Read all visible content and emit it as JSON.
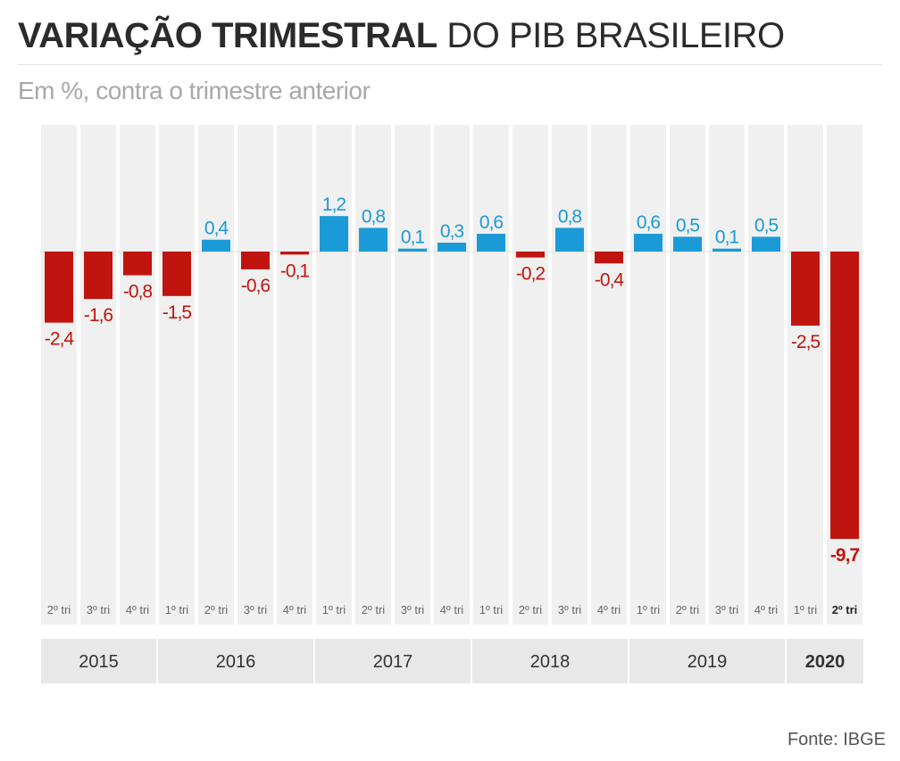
{
  "header": {
    "title_bold": "VARIAÇÃO TRIMESTRAL",
    "title_light": "DO PIB BRASILEIRO",
    "subtitle": "Em %, contra o trimestre anterior"
  },
  "source": "Fonte: IBGE",
  "colors": {
    "positive": "#1a9ad6",
    "negative": "#c0150e",
    "column_bg": "#f0f0f0",
    "year_bg": "#e8e8e8"
  },
  "chart_data": {
    "type": "bar",
    "categories": [
      "2º tri",
      "3º tri",
      "4º tri",
      "1º tri",
      "2º tri",
      "3º tri",
      "4º tri",
      "1º tri",
      "2º tri",
      "3º tri",
      "4º tri",
      "1º tri",
      "2º tri",
      "3º tri",
      "4º tri",
      "1º tri",
      "2º tri",
      "3º tri",
      "4º tri",
      "1º tri",
      "2º tri"
    ],
    "values": [
      -2.4,
      -1.6,
      -0.8,
      -1.5,
      0.4,
      -0.6,
      -0.1,
      1.2,
      0.8,
      0.1,
      0.3,
      0.6,
      -0.2,
      0.8,
      -0.4,
      0.6,
      0.5,
      0.1,
      0.5,
      -2.5,
      -9.7
    ],
    "value_labels": [
      "-2,4",
      "-1,6",
      "-0,8",
      "-1,5",
      "0,4",
      "-0,6",
      "-0,1",
      "1,2",
      "0,8",
      "0,1",
      "0,3",
      "0,6",
      "-0,2",
      "0,8",
      "-0,4",
      "0,6",
      "0,5",
      "0,1",
      "0,5",
      "-2,5",
      "-9,7"
    ],
    "years": [
      {
        "label": "2015",
        "quarters": 3
      },
      {
        "label": "2016",
        "quarters": 4
      },
      {
        "label": "2017",
        "quarters": 4
      },
      {
        "label": "2018",
        "quarters": 4
      },
      {
        "label": "2019",
        "quarters": 4
      },
      {
        "label": "2020",
        "quarters": 2
      }
    ],
    "highlight_index": 20,
    "ylim": [
      -10.5,
      4.2
    ],
    "title": "VARIAÇÃO TRIMESTRAL DO PIB BRASILEIRO",
    "subtitle": "Em %, contra o trimestre anterior"
  }
}
